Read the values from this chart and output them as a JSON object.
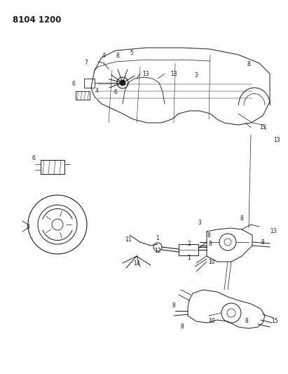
{
  "title": "8104 1200",
  "background_color": "#ffffff",
  "line_color": "#1a1a1a",
  "figsize": [
    4.11,
    5.33
  ],
  "dpi": 100,
  "title_fontsize": 8.5,
  "title_fontweight": "bold",
  "label_fontsize": 5.5
}
